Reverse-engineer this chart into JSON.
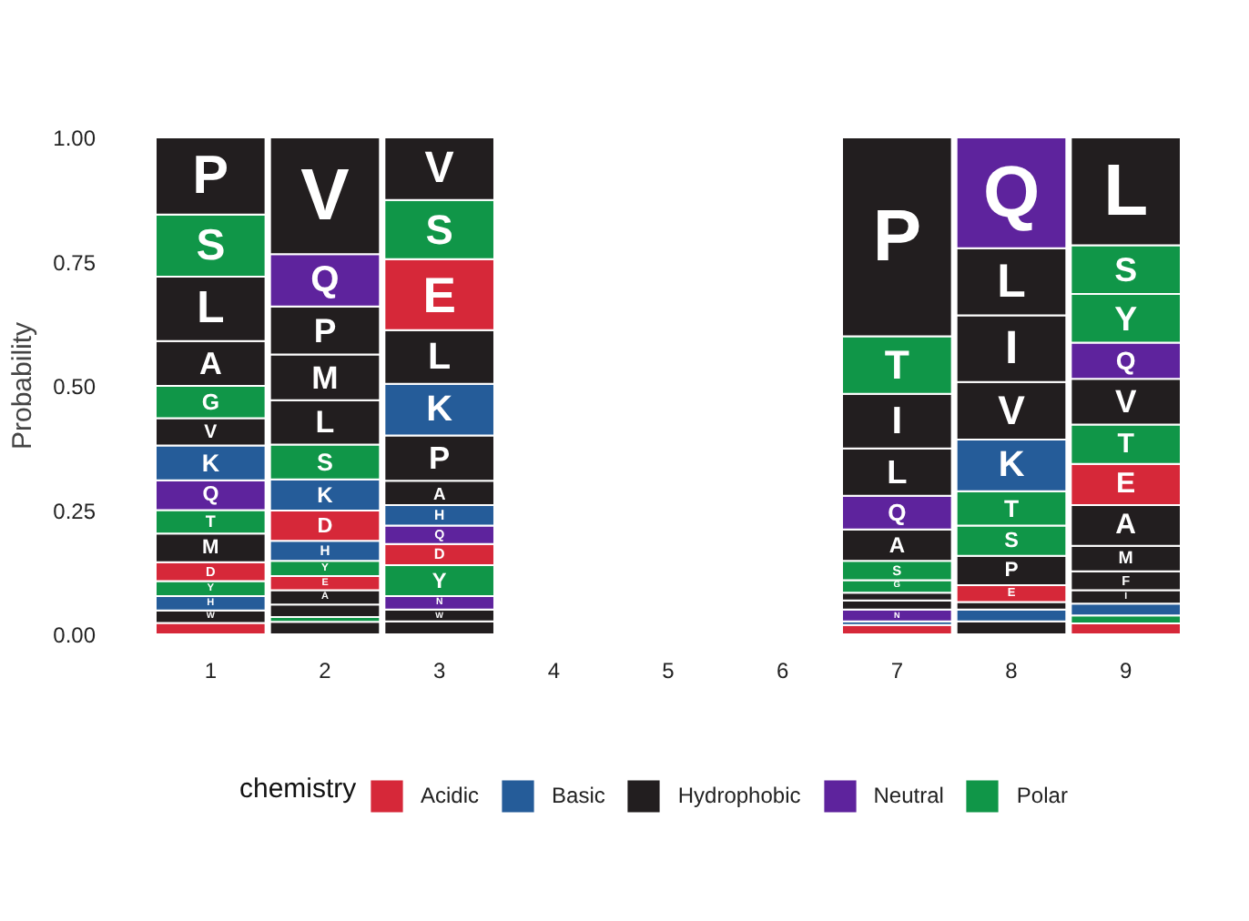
{
  "chart_data": {
    "type": "bar",
    "stacked": true,
    "ylabel": "Probability",
    "legend_title": "chemistry",
    "legend": "bottom",
    "grid": false,
    "categories": [
      "1",
      "2",
      "3",
      "4",
      "5",
      "6",
      "7",
      "8",
      "9"
    ],
    "ylim": [
      0,
      1
    ],
    "yticks": [
      {
        "value": 0,
        "label": "0.00"
      },
      0.25,
      {
        "value": 0.5,
        "label": "0.50"
      },
      0.75,
      {
        "value": 1,
        "label": "1.00"
      }
    ],
    "series": [
      {
        "values": [
          0.023,
          0.025,
          0.026,
          null,
          null,
          null,
          0.019,
          0.026,
          0.022
        ],
        "colors": [
          "#d62839",
          "#221e1f",
          "#221e1f",
          null,
          null,
          null,
          "#d62839",
          "#221e1f",
          "#d62839"
        ]
      },
      {
        "values": [
          0.025,
          0.01,
          0.024,
          null,
          null,
          null,
          0.007,
          0.024,
          0.016
        ],
        "colors": [
          "#221e1f",
          "#109648",
          "#221e1f",
          null,
          null,
          null,
          "#255c99",
          "#255c99",
          "#109648"
        ],
        "value_labels": [
          "W",
          null,
          "W",
          null,
          null,
          null,
          null,
          null,
          null
        ]
      },
      {
        "values": [
          0.029,
          0.025,
          0.027,
          null,
          null,
          null,
          0.024,
          0.015,
          0.024
        ],
        "colors": [
          "#255c99",
          "#221e1f",
          "#5e239d",
          null,
          null,
          null,
          "#5e239d",
          "#221e1f",
          "#255c99"
        ],
        "value_labels": [
          "H",
          null,
          "N",
          null,
          null,
          null,
          "N",
          null,
          null
        ]
      },
      {
        "values": [
          0.03,
          0.029,
          0.062,
          null,
          null,
          null,
          0.018,
          0.034,
          0.027
        ],
        "colors": [
          "#109648",
          "#221e1f",
          "#109648",
          null,
          null,
          null,
          "#221e1f",
          "#d62839",
          "#221e1f"
        ],
        "value_labels": [
          "Y",
          "A",
          "Y",
          null,
          null,
          null,
          null,
          "E",
          "I"
        ]
      },
      {
        "values": [
          0.038,
          0.028,
          0.043,
          null,
          null,
          null,
          0.016,
          0.059,
          0.038
        ],
        "colors": [
          "#d62839",
          "#d62839",
          "#d62839",
          null,
          null,
          null,
          "#221e1f",
          "#221e1f",
          "#221e1f"
        ],
        "value_labels": [
          "D",
          "E",
          "D",
          null,
          null,
          null,
          null,
          "P",
          "F"
        ]
      },
      {
        "values": [
          0.058,
          0.031,
          0.037,
          null,
          null,
          null,
          0.025,
          0.061,
          0.051
        ],
        "colors": [
          "#221e1f",
          "#109648",
          "#5e239d",
          null,
          null,
          null,
          "#109648",
          "#109648",
          "#221e1f"
        ],
        "value_labels": [
          "M",
          "Y",
          "Q",
          null,
          null,
          null,
          "G",
          "S",
          "M"
        ]
      },
      {
        "values": [
          0.047,
          0.04,
          0.041,
          null,
          null,
          null,
          0.039,
          0.069,
          0.082
        ],
        "colors": [
          "#109648",
          "#255c99",
          "#255c99",
          null,
          null,
          null,
          "#109648",
          "#109648",
          "#221e1f"
        ],
        "value_labels": [
          "T",
          "H",
          "H",
          null,
          null,
          null,
          "S",
          "T",
          "A"
        ]
      },
      {
        "values": [
          0.06,
          0.061,
          0.049,
          null,
          null,
          null,
          0.063,
          0.104,
          0.083
        ],
        "colors": [
          "#5e239d",
          "#d62839",
          "#221e1f",
          null,
          null,
          null,
          "#221e1f",
          "#255c99",
          "#d62839"
        ],
        "value_labels": [
          "Q",
          "D",
          "A",
          null,
          null,
          null,
          "A",
          "K",
          "E"
        ]
      },
      {
        "values": [
          0.07,
          0.063,
          0.091,
          null,
          null,
          null,
          0.068,
          0.116,
          0.079
        ],
        "colors": [
          "#255c99",
          "#255c99",
          "#221e1f",
          null,
          null,
          null,
          "#5e239d",
          "#221e1f",
          "#109648"
        ],
        "value_labels": [
          "K",
          "K",
          "P",
          null,
          null,
          null,
          "Q",
          "V",
          "T"
        ]
      },
      {
        "values": [
          0.055,
          0.07,
          0.104,
          null,
          null,
          null,
          0.095,
          0.134,
          0.092
        ],
        "colors": [
          "#221e1f",
          "#109648",
          "#255c99",
          null,
          null,
          null,
          "#221e1f",
          "#221e1f",
          "#221e1f"
        ],
        "value_labels": [
          "V",
          "S",
          "K",
          null,
          null,
          null,
          "L",
          "I",
          "V"
        ]
      },
      {
        "values": [
          0.065,
          0.089,
          0.108,
          null,
          null,
          null,
          0.11,
          0.135,
          0.073
        ],
        "colors": [
          "#109648",
          "#221e1f",
          "#221e1f",
          null,
          null,
          null,
          "#221e1f",
          "#221e1f",
          "#5e239d"
        ],
        "value_labels": [
          "G",
          "L",
          "L",
          null,
          null,
          null,
          "I",
          "L",
          "Q"
        ]
      },
      {
        "values": [
          0.09,
          0.092,
          0.143,
          null,
          null,
          null,
          0.116,
          0.223,
          0.098
        ],
        "colors": [
          "#221e1f",
          "#221e1f",
          "#d62839",
          null,
          null,
          null,
          "#109648",
          "#5e239d",
          "#109648"
        ],
        "value_labels": [
          "A",
          "M",
          "E",
          null,
          null,
          null,
          "T",
          "Q",
          "Y"
        ]
      },
      {
        "values": [
          0.13,
          0.097,
          0.119,
          null,
          null,
          null,
          0.4,
          null,
          0.098
        ],
        "colors": [
          "#221e1f",
          "#221e1f",
          "#109648",
          null,
          null,
          null,
          "#221e1f",
          null,
          "#109648"
        ],
        "value_labels": [
          "L",
          "P",
          "S",
          null,
          null,
          null,
          "P",
          null,
          "S"
        ]
      },
      {
        "values": [
          0.125,
          0.105,
          0.126,
          null,
          null,
          null,
          null,
          null,
          0.217
        ],
        "colors": [
          "#109648",
          "#5e239d",
          "#221e1f",
          null,
          null,
          null,
          null,
          null,
          "#221e1f"
        ],
        "value_labels": [
          "S",
          "Q",
          "V",
          null,
          null,
          null,
          null,
          null,
          "L"
        ]
      },
      {
        "values": [
          0.155,
          0.235,
          null,
          null,
          null,
          null,
          null,
          null,
          null
        ],
        "colors": [
          "#221e1f",
          "#221e1f",
          null,
          null,
          null,
          null,
          null,
          null,
          null
        ],
        "value_labels": [
          "P",
          "V",
          null,
          null,
          null,
          null,
          null,
          null,
          null
        ]
      },
      {
        "name": "Acidic",
        "color": "#d62839",
        "values": [
          null,
          null,
          null,
          null,
          null,
          null,
          null,
          null,
          null
        ]
      },
      {
        "name": "Basic",
        "color": "#255c99",
        "values": [
          null,
          null,
          null,
          null,
          null,
          null,
          null,
          null,
          null
        ]
      },
      {
        "name": "Hydrophobic",
        "color": "#221e1f",
        "values": [
          null,
          null,
          null,
          null,
          null,
          null,
          null,
          null,
          null
        ]
      },
      {
        "name": "Neutral",
        "color": "#5e239d",
        "values": [
          null,
          null,
          null,
          null,
          null,
          null,
          null,
          null,
          null
        ]
      },
      {
        "name": "Polar",
        "color": "#109648",
        "values": [
          null,
          null,
          null,
          null,
          null,
          null,
          null,
          null,
          null
        ]
      }
    ]
  }
}
